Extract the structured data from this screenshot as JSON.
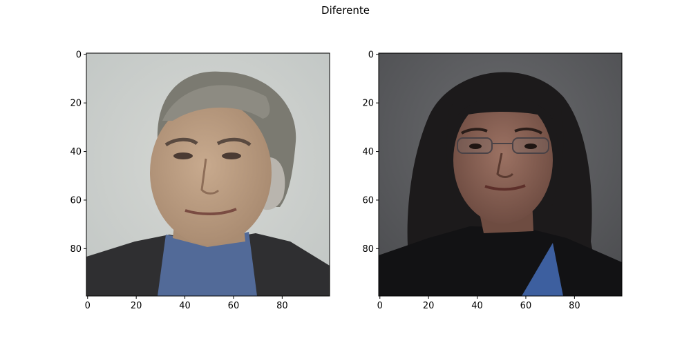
{
  "figure": {
    "title": "Diferente"
  },
  "panels": [
    {
      "subject": "portrait-older-man",
      "x_ticks": [
        "0",
        "20",
        "40",
        "60",
        "80"
      ],
      "y_ticks": [
        "0",
        "20",
        "40",
        "60",
        "80"
      ],
      "colors": {
        "background": "#c9cdca",
        "skin": "#b99a7f",
        "hair": "#7b7a71",
        "jacket": "#2f2f31",
        "shirt": "#526a98"
      }
    },
    {
      "subject": "portrait-woman-glasses",
      "x_ticks": [
        "0",
        "20",
        "40",
        "60",
        "80"
      ],
      "y_ticks": [
        "0",
        "20",
        "40",
        "60",
        "80"
      ],
      "colors": {
        "background": "#5e5f62",
        "skin": "#8b6456",
        "hair": "#1c1a1b",
        "top": "#121214",
        "shirt": "#3d5f9f"
      }
    }
  ]
}
